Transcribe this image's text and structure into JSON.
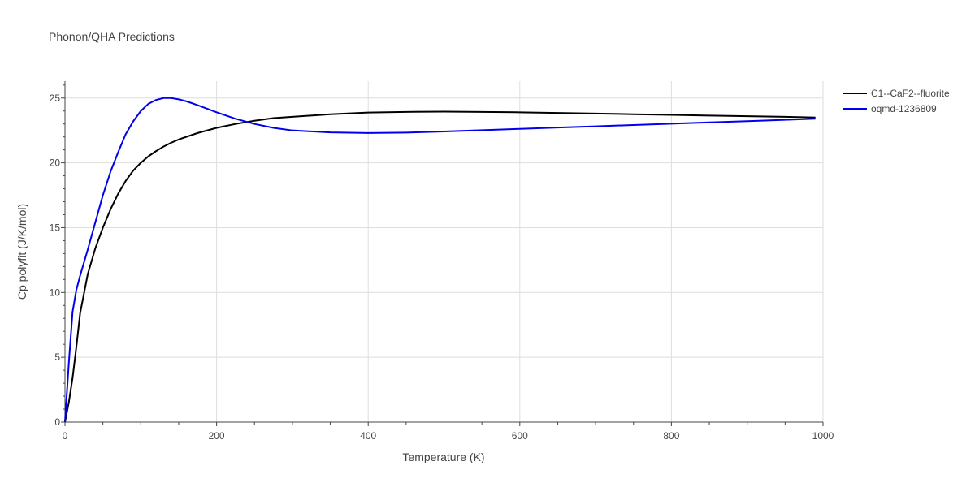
{
  "chart_data": {
    "type": "line",
    "title": "Phonon/QHA Predictions",
    "xlabel": "Temperature (K)",
    "ylabel": "Cp polyfit (J/K/mol)",
    "xlim": [
      0,
      1000
    ],
    "ylim": [
      0,
      26.3
    ],
    "x_ticks": [
      0,
      200,
      400,
      600,
      800,
      1000
    ],
    "y_ticks": [
      0,
      5,
      10,
      15,
      20,
      25
    ],
    "grid": true,
    "legend_position": "top-right",
    "series": [
      {
        "name": "C1--CaF2--fluorite",
        "color": "#000000",
        "x": [
          0,
          5,
          10,
          15,
          20,
          30,
          40,
          50,
          60,
          70,
          80,
          90,
          100,
          110,
          120,
          130,
          140,
          150,
          175,
          200,
          225,
          250,
          275,
          300,
          350,
          400,
          450,
          500,
          550,
          600,
          650,
          700,
          750,
          800,
          850,
          900,
          950,
          990
        ],
        "y": [
          0,
          1.5,
          3.4,
          5.8,
          8.4,
          11.4,
          13.4,
          15.0,
          16.4,
          17.6,
          18.6,
          19.4,
          20.0,
          20.5,
          20.9,
          21.25,
          21.55,
          21.8,
          22.3,
          22.7,
          23.0,
          23.25,
          23.45,
          23.55,
          23.75,
          23.88,
          23.93,
          23.95,
          23.93,
          23.9,
          23.85,
          23.8,
          23.75,
          23.7,
          23.65,
          23.6,
          23.55,
          23.5
        ]
      },
      {
        "name": "oqmd-1236809",
        "color": "#0000ee",
        "x": [
          0,
          5,
          10,
          15,
          20,
          30,
          40,
          50,
          60,
          70,
          80,
          90,
          100,
          110,
          120,
          130,
          140,
          150,
          160,
          175,
          200,
          225,
          250,
          275,
          300,
          350,
          400,
          450,
          500,
          550,
          600,
          650,
          700,
          750,
          800,
          850,
          900,
          950,
          990
        ],
        "y": [
          0,
          4.5,
          8.5,
          10.2,
          11.3,
          13.3,
          15.4,
          17.5,
          19.3,
          20.8,
          22.2,
          23.2,
          24.0,
          24.55,
          24.85,
          25.0,
          25.0,
          24.9,
          24.75,
          24.45,
          23.9,
          23.4,
          23.0,
          22.7,
          22.5,
          22.35,
          22.3,
          22.33,
          22.42,
          22.52,
          22.62,
          22.72,
          22.82,
          22.92,
          23.02,
          23.12,
          23.22,
          23.32,
          23.4
        ]
      }
    ]
  }
}
